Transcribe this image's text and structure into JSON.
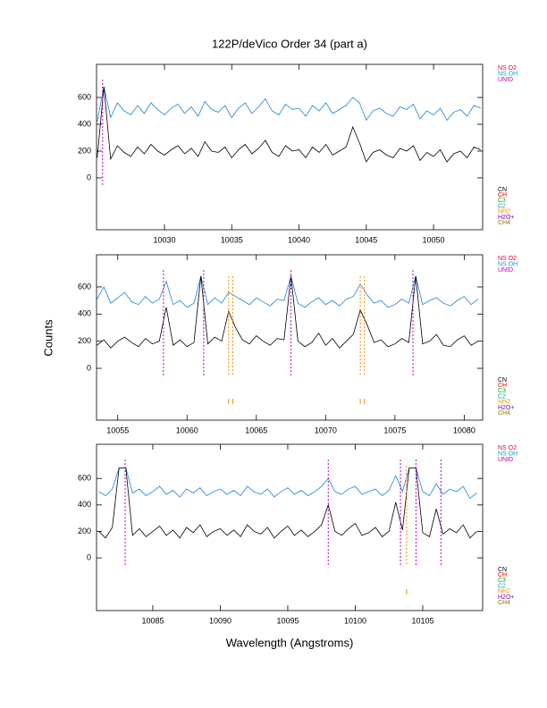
{
  "title": "122P/deVico Order 34 (part a)",
  "xlabel": "Wavelength (Angstroms)",
  "ylabel": "Counts",
  "chart_data": [
    {
      "type": "line",
      "xlim": [
        10024.95,
        10053.65
      ],
      "ylim": [
        -387,
        847
      ],
      "xticks": [
        10030,
        10035,
        10040,
        10045,
        10050
      ],
      "yticks": [
        0,
        200,
        400,
        600
      ],
      "x": [
        10025,
        10025.5,
        10026,
        10026.5,
        10027,
        10027.5,
        10028,
        10028.5,
        10029,
        10029.5,
        10030,
        10030.5,
        10031,
        10031.5,
        10032,
        10032.5,
        10033,
        10033.5,
        10034,
        10034.5,
        10035,
        10035.5,
        10036,
        10036.5,
        10037,
        10037.5,
        10038,
        10038.5,
        10039,
        10039.5,
        10040,
        10040.5,
        10041,
        10041.5,
        10042,
        10042.5,
        10043,
        10043.5,
        10044,
        10044.5,
        10045,
        10045.5,
        10046,
        10046.5,
        10047,
        10047.5,
        10048,
        10048.5,
        10049,
        10049.5,
        10050,
        10050.5,
        10051,
        10051.5,
        10052,
        10052.5,
        10053,
        10053.5
      ],
      "series": [
        {
          "color": "#1e80e0",
          "values": [
            420,
            680,
            450,
            560,
            500,
            470,
            540,
            480,
            560,
            510,
            470,
            520,
            550,
            480,
            530,
            460,
            570,
            510,
            490,
            540,
            450,
            520,
            560,
            480,
            530,
            590,
            500,
            470,
            550,
            510,
            520,
            460,
            540,
            500,
            560,
            480,
            510,
            540,
            600,
            560,
            430,
            500,
            520,
            480,
            460,
            530,
            510,
            550,
            440,
            500,
            470,
            520,
            430,
            490,
            510,
            460,
            540,
            520
          ]
        },
        {
          "color": "#000000",
          "values": [
            150,
            680,
            140,
            240,
            190,
            160,
            230,
            180,
            250,
            200,
            170,
            210,
            240,
            180,
            220,
            160,
            270,
            200,
            190,
            230,
            150,
            210,
            250,
            180,
            220,
            280,
            190,
            160,
            240,
            200,
            210,
            150,
            230,
            190,
            250,
            170,
            200,
            230,
            380,
            260,
            120,
            190,
            210,
            170,
            150,
            220,
            200,
            240,
            130,
            190,
            160,
            210,
            120,
            180,
            200,
            150,
            230,
            210
          ]
        }
      ],
      "unid_lines": [
        10025.4
      ],
      "nh2_lines": [],
      "labels_top": [
        {
          "name": "NS O2",
          "color": "#e0004a"
        },
        {
          "name": "NS OH",
          "color": "#00a8c8"
        },
        {
          "name": "UNID",
          "color": "#c000c0"
        }
      ],
      "labels_bottom": [
        {
          "name": "CN",
          "color": "#000000"
        },
        {
          "name": "CH",
          "color": "#e00000"
        },
        {
          "name": "C3",
          "color": "#00b000"
        },
        {
          "name": "C2",
          "color": "#00a0a0"
        },
        {
          "name": "NH2",
          "color": "#f09000"
        },
        {
          "name": "H2O+",
          "color": "#8000c0"
        },
        {
          "name": "CH4",
          "color": "#808000"
        }
      ]
    },
    {
      "type": "line",
      "xlim": [
        10053.47,
        10081.33
      ],
      "ylim": [
        -382,
        837
      ],
      "xticks": [
        10055,
        10060,
        10065,
        10070,
        10075,
        10080
      ],
      "yticks": [
        0,
        200,
        400,
        600
      ],
      "x": [
        10053.5,
        10054,
        10054.5,
        10055,
        10055.5,
        10056,
        10056.5,
        10057,
        10057.5,
        10058,
        10058.5,
        10059,
        10059.5,
        10060,
        10060.5,
        10061,
        10061.5,
        10062,
        10062.5,
        10063,
        10063.5,
        10064,
        10064.5,
        10065,
        10065.5,
        10066,
        10066.5,
        10067,
        10067.5,
        10068,
        10068.5,
        10069,
        10069.5,
        10070,
        10070.5,
        10071,
        10071.5,
        10072,
        10072.5,
        10073,
        10073.5,
        10074,
        10074.5,
        10075,
        10075.5,
        10076,
        10076.5,
        10077,
        10077.5,
        10078,
        10078.5,
        10079,
        10079.5,
        10080,
        10080.5,
        10081
      ],
      "series": [
        {
          "color": "#1e80e0",
          "values": [
            510,
            600,
            480,
            520,
            560,
            490,
            470,
            530,
            480,
            510,
            640,
            470,
            500,
            450,
            480,
            680,
            470,
            520,
            480,
            560,
            530,
            500,
            470,
            520,
            490,
            460,
            510,
            500,
            680,
            480,
            450,
            490,
            520,
            470,
            500,
            460,
            510,
            530,
            620,
            540,
            480,
            500,
            450,
            470,
            510,
            480,
            680,
            470,
            500,
            520,
            480,
            460,
            500,
            530,
            470,
            510
          ]
        },
        {
          "color": "#000000",
          "values": [
            170,
            210,
            150,
            200,
            230,
            190,
            160,
            220,
            180,
            200,
            450,
            170,
            210,
            160,
            190,
            680,
            180,
            230,
            200,
            420,
            300,
            210,
            180,
            240,
            200,
            170,
            220,
            210,
            680,
            200,
            160,
            190,
            260,
            170,
            220,
            150,
            200,
            250,
            430,
            320,
            190,
            210,
            160,
            180,
            220,
            190,
            680,
            180,
            200,
            250,
            170,
            160,
            210,
            240,
            170,
            200
          ]
        }
      ],
      "unid_lines": [
        10058.3,
        10061.2,
        10067.5,
        10076.3
      ],
      "nh2_lines": [
        10063.0,
        10063.3,
        10072.5,
        10072.8
      ],
      "labels_top": [
        {
          "name": "NS O2",
          "color": "#e0004a"
        },
        {
          "name": "NS OH",
          "color": "#00a8c8"
        },
        {
          "name": "UNID",
          "color": "#c000c0"
        }
      ],
      "labels_bottom": [
        {
          "name": "CN",
          "color": "#000000"
        },
        {
          "name": "CH",
          "color": "#e00000"
        },
        {
          "name": "C3",
          "color": "#00b000"
        },
        {
          "name": "C2",
          "color": "#00a0a0"
        },
        {
          "name": "NH2",
          "color": "#f09000"
        },
        {
          "name": "H2O+",
          "color": "#8000c0"
        },
        {
          "name": "CH4",
          "color": "#808000"
        }
      ]
    },
    {
      "type": "line",
      "xlim": [
        10080.83,
        10109.44
      ],
      "ylim": [
        -398,
        858
      ],
      "xticks": [
        10085,
        10090,
        10095,
        10100,
        10105
      ],
      "yticks": [
        0,
        200,
        400,
        600
      ],
      "x": [
        10081,
        10081.5,
        10082,
        10082.5,
        10083,
        10083.5,
        10084,
        10084.5,
        10085,
        10085.5,
        10086,
        10086.5,
        10087,
        10087.5,
        10088,
        10088.5,
        10089,
        10089.5,
        10090,
        10090.5,
        10091,
        10091.5,
        10092,
        10092.5,
        10093,
        10093.5,
        10094,
        10094.5,
        10095,
        10095.5,
        10096,
        10096.5,
        10097,
        10097.5,
        10098,
        10098.5,
        10099,
        10099.5,
        10100,
        10100.5,
        10101,
        10101.5,
        10102,
        10102.5,
        10103,
        10103.5,
        10104,
        10104.5,
        10105,
        10105.5,
        10106,
        10106.5,
        10107,
        10107.5,
        10108,
        10108.5,
        10109
      ],
      "series": [
        {
          "color": "#1e80e0",
          "values": [
            500,
            470,
            520,
            680,
            680,
            490,
            520,
            470,
            500,
            540,
            480,
            510,
            460,
            520,
            490,
            530,
            470,
            500,
            520,
            480,
            510,
            470,
            540,
            500,
            480,
            520,
            460,
            500,
            530,
            480,
            510,
            470,
            500,
            540,
            600,
            500,
            480,
            520,
            540,
            480,
            500,
            520,
            470,
            510,
            620,
            500,
            680,
            680,
            500,
            470,
            560,
            480,
            520,
            500,
            540,
            450,
            490
          ]
        },
        {
          "color": "#000000",
          "values": [
            200,
            150,
            230,
            680,
            680,
            170,
            220,
            160,
            200,
            240,
            170,
            210,
            150,
            230,
            190,
            250,
            160,
            200,
            220,
            170,
            210,
            160,
            250,
            200,
            180,
            230,
            150,
            200,
            240,
            170,
            210,
            160,
            200,
            250,
            400,
            200,
            170,
            220,
            260,
            170,
            190,
            230,
            160,
            200,
            420,
            210,
            680,
            680,
            190,
            160,
            370,
            180,
            220,
            190,
            250,
            150,
            200
          ]
        }
      ],
      "unid_lines": [
        10082.95,
        10098.0,
        10103.35,
        10104.5,
        10106.35
      ],
      "nh2_lines": [
        10103.8
      ],
      "labels_top": [
        {
          "name": "NS O2",
          "color": "#e0004a"
        },
        {
          "name": "NS OH",
          "color": "#00a8c8"
        },
        {
          "name": "UNID",
          "color": "#c000c0"
        }
      ],
      "labels_bottom": [
        {
          "name": "CN",
          "color": "#000000"
        },
        {
          "name": "CH",
          "color": "#e00000"
        },
        {
          "name": "C3",
          "color": "#00b000"
        },
        {
          "name": "C2",
          "color": "#00a0a0"
        },
        {
          "name": "NH2",
          "color": "#f09000"
        },
        {
          "name": "H2O+",
          "color": "#8000c0"
        },
        {
          "name": "CH4",
          "color": "#808000"
        }
      ]
    }
  ]
}
